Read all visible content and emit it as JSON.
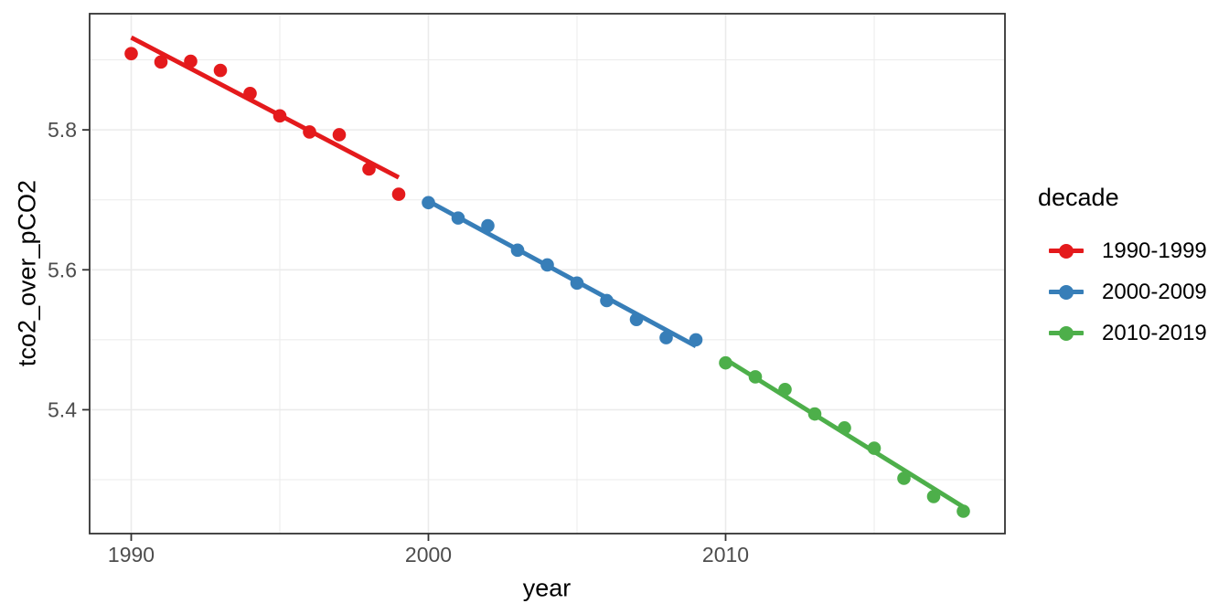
{
  "style": {
    "background": "#FFFFFF",
    "grid_color": "#EBEBEB",
    "panel_border_color": "#333333",
    "tick_color": "#333333",
    "tick_label_color": "#4D4D4D",
    "axis_title_color": "#000000"
  },
  "chart_data": {
    "type": "scatter",
    "title": "",
    "xlabel": "year",
    "ylabel": "tco2_over_pCO2",
    "xlim": [
      1988.6,
      2019.4
    ],
    "ylim": [
      5.223,
      5.966
    ],
    "grid": true,
    "x_major_ticks": [
      1990,
      2000,
      2010
    ],
    "x_tick_labels": [
      "1990",
      "2000",
      "2010"
    ],
    "x_minor_ticks": [
      1995,
      2005,
      2015
    ],
    "y_major_ticks": [
      5.8,
      5.6,
      5.4
    ],
    "y_tick_labels": [
      "5.8",
      "5.6",
      "5.4"
    ],
    "y_minor_ticks": [
      5.9,
      5.7,
      5.5,
      5.3
    ],
    "legend_title": "decade",
    "legend_position": "right",
    "series": [
      {
        "name": "1990-1999",
        "color": "#E41A1C",
        "x": [
          1990,
          1991,
          1992,
          1993,
          1994,
          1995,
          1996,
          1997,
          1998,
          1999
        ],
        "y": [
          5.909,
          5.897,
          5.898,
          5.885,
          5.852,
          5.82,
          5.797,
          5.793,
          5.744,
          5.708
        ],
        "trend": {
          "x": [
            1990,
            1999
          ],
          "y": [
            5.932,
            5.732
          ]
        }
      },
      {
        "name": "2000-2009",
        "color": "#377EB8",
        "x": [
          2000,
          2001,
          2002,
          2003,
          2004,
          2005,
          2006,
          2007,
          2008,
          2009
        ],
        "y": [
          5.696,
          5.674,
          5.663,
          5.628,
          5.607,
          5.581,
          5.556,
          5.529,
          5.503,
          5.5
        ],
        "trend": {
          "x": [
            2000,
            2009
          ],
          "y": [
            5.698,
            5.491
          ]
        }
      },
      {
        "name": "2010-2019",
        "color": "#4DAF4A",
        "x": [
          2010,
          2011,
          2012,
          2013,
          2014,
          2015,
          2016,
          2017,
          2018
        ],
        "y": [
          5.467,
          5.447,
          5.429,
          5.394,
          5.374,
          5.345,
          5.302,
          5.276,
          5.255
        ],
        "trend": {
          "x": [
            2010,
            2018
          ],
          "y": [
            5.472,
            5.261
          ]
        }
      }
    ]
  }
}
